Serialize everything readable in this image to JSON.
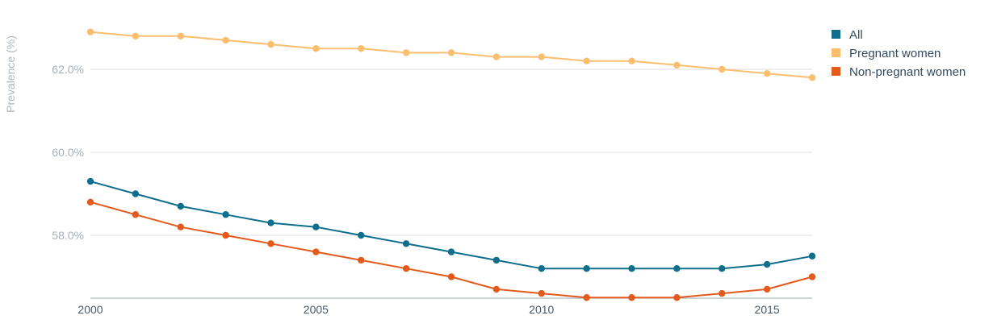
{
  "chart_data": {
    "type": "line",
    "title": "",
    "xlabel": "",
    "ylabel": "Prevalence (%)",
    "x": [
      2000,
      2001,
      2002,
      2003,
      2004,
      2005,
      2006,
      2007,
      2008,
      2009,
      2010,
      2011,
      2012,
      2013,
      2014,
      2015,
      2016
    ],
    "xlim": [
      2000,
      2016
    ],
    "ylim": [
      56.5,
      63.0
    ],
    "xticks": [
      2000,
      2005,
      2010,
      2015
    ],
    "xtick_labels": [
      "2000",
      "2005",
      "2010",
      "2015"
    ],
    "yticks": [
      58,
      60,
      62
    ],
    "ytick_labels": [
      "58.0%",
      "60.0%",
      "62.0%"
    ],
    "grid": "horizontal",
    "legend_position": "top-right",
    "series": [
      {
        "name": "All",
        "color": "#0f6e8c",
        "values": [
          59.3,
          59.0,
          58.7,
          58.5,
          58.3,
          58.2,
          58.0,
          57.8,
          57.6,
          57.4,
          57.2,
          57.2,
          57.2,
          57.2,
          57.2,
          57.3,
          57.5
        ]
      },
      {
        "name": "Pregnant women",
        "color": "#fbbe6f",
        "values": [
          62.9,
          62.8,
          62.8,
          62.7,
          62.6,
          62.5,
          62.5,
          62.4,
          62.4,
          62.3,
          62.3,
          62.2,
          62.2,
          62.1,
          62.0,
          61.9,
          61.8
        ]
      },
      {
        "name": "Non-pregnant women",
        "color": "#e35a1d",
        "values": [
          58.8,
          58.5,
          58.2,
          58.0,
          57.8,
          57.6,
          57.4,
          57.2,
          57.0,
          56.7,
          56.6,
          56.5,
          56.5,
          56.5,
          56.6,
          56.7,
          57.0
        ]
      }
    ]
  }
}
